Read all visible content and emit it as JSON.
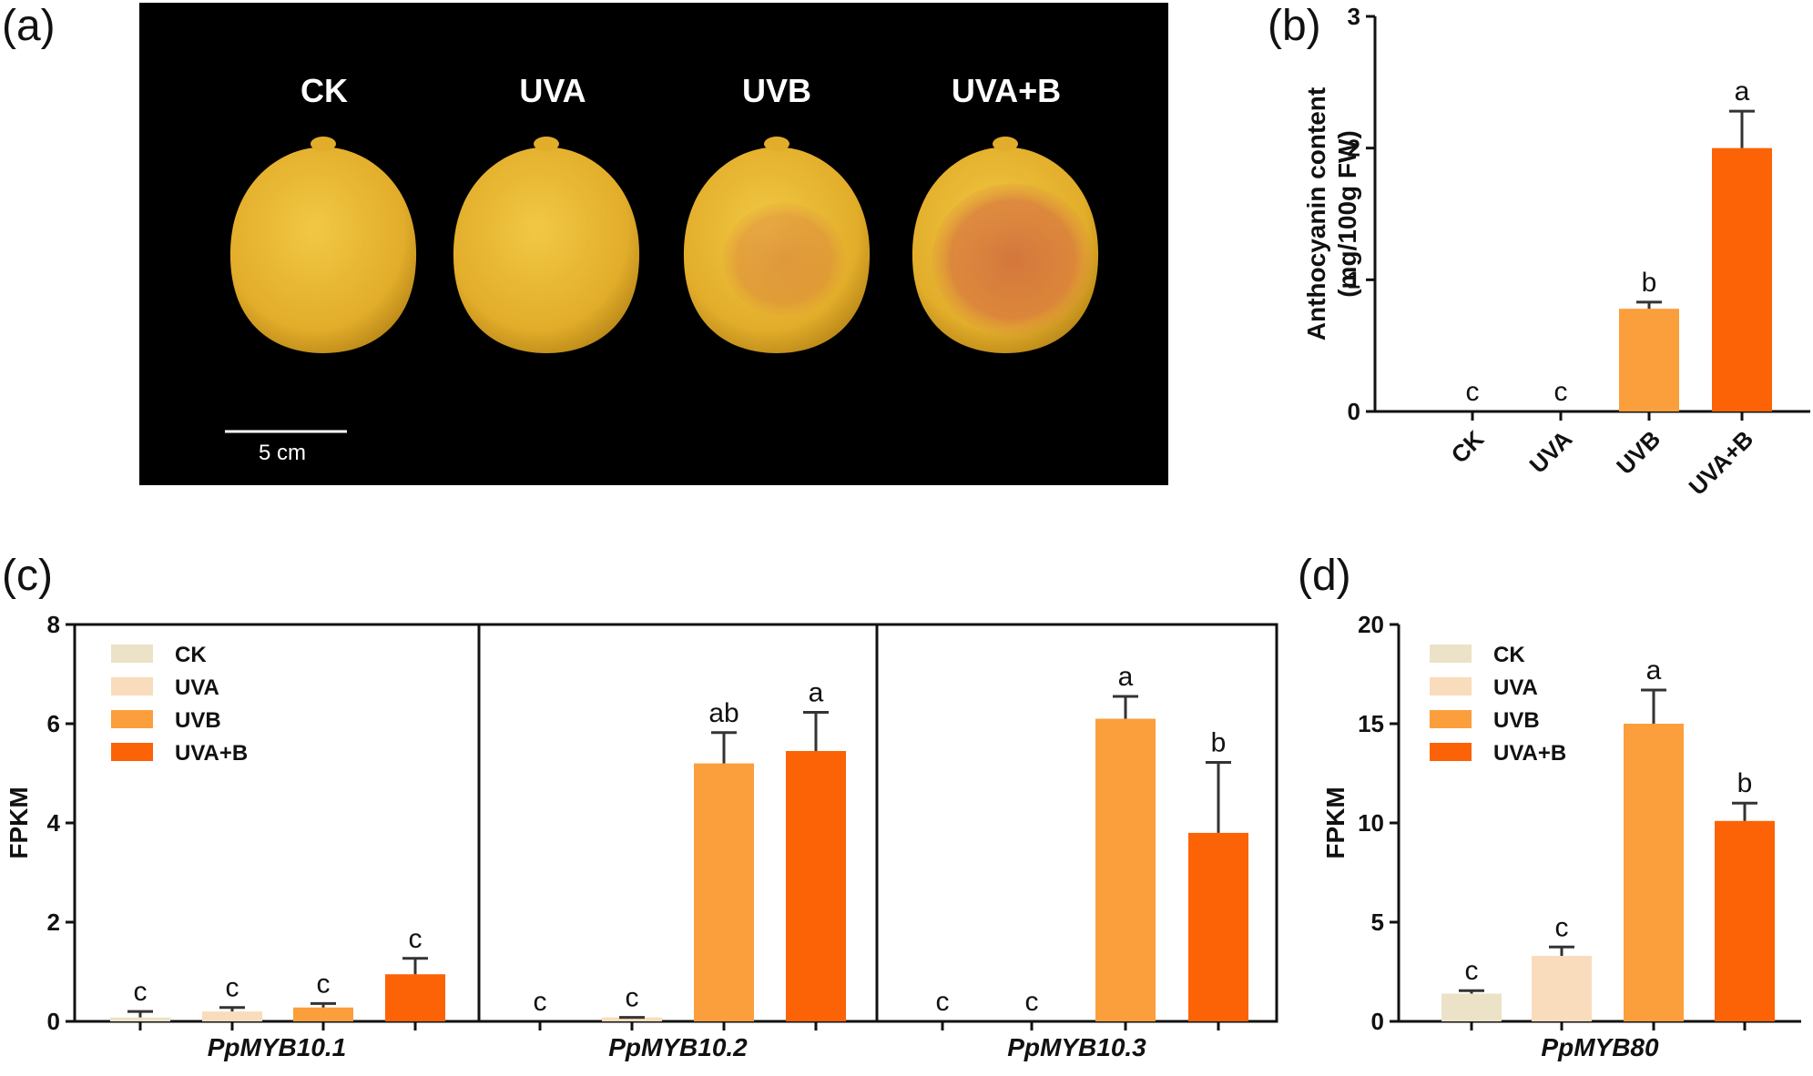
{
  "panel_labels": {
    "a": "(a)",
    "b": "(b)",
    "c": "(c)",
    "d": "(d)"
  },
  "photo": {
    "treatments": [
      "CK",
      "UVA",
      "UVB",
      "UVA+B"
    ],
    "scale_bar_label": "5 cm",
    "colors": {
      "background": "#000000",
      "fruit": "#e7b52f",
      "blush": "#d8763f"
    },
    "blush_levels": [
      0,
      0.05,
      0.45,
      0.85
    ]
  },
  "colors": {
    "CK": "#ebe2c7",
    "UVA": "#f9dcbc",
    "UVB": "#fb9e3c",
    "UVA+B": "#fb6306",
    "error": "#333333"
  },
  "chart_data": [
    {
      "id": "b",
      "type": "bar",
      "categories": [
        "CK",
        "UVA",
        "UVB",
        "UVA+B"
      ],
      "values": [
        0,
        0,
        0.78,
        2.0
      ],
      "errors": [
        0,
        0,
        0.05,
        0.28
      ],
      "significance": [
        "c",
        "c",
        "b",
        "a"
      ],
      "ylabel_lines": [
        "Anthocyanin content",
        "(mg/100g FW)"
      ],
      "ylim": [
        0,
        3
      ],
      "yticks": [
        0,
        1,
        2,
        3
      ],
      "xlabel": "",
      "title": ""
    },
    {
      "id": "c",
      "type": "bar",
      "ylabel": "FPKM",
      "ylim": [
        0,
        8
      ],
      "yticks": [
        0,
        2,
        4,
        6,
        8
      ],
      "legend": {
        "position": "top-left",
        "entries": [
          "CK",
          "UVA",
          "UVB",
          "UVA+B"
        ]
      },
      "groups": [
        {
          "gene": "PpMYB10.1",
          "values": [
            0.08,
            0.2,
            0.28,
            0.95
          ],
          "errors": [
            0.12,
            0.08,
            0.08,
            0.32
          ],
          "significance": [
            "c",
            "c",
            "c",
            "c"
          ]
        },
        {
          "gene": "PpMYB10.2",
          "values": [
            0,
            0.08,
            5.2,
            5.45
          ],
          "errors": [
            0,
            0,
            0.62,
            0.78
          ],
          "significance": [
            "c",
            "c",
            "ab",
            "a"
          ]
        },
        {
          "gene": "PpMYB10.3",
          "values": [
            0,
            0,
            6.1,
            3.8
          ],
          "errors": [
            0,
            0,
            0.45,
            1.42
          ],
          "significance": [
            "c",
            "c",
            "a",
            "b"
          ]
        }
      ],
      "series": [
        "CK",
        "UVA",
        "UVB",
        "UVA+B"
      ]
    },
    {
      "id": "d",
      "type": "bar",
      "ylabel": "FPKM",
      "ylim": [
        0,
        20
      ],
      "yticks": [
        0,
        5,
        10,
        15,
        20
      ],
      "legend": {
        "position": "top-left",
        "entries": [
          "CK",
          "UVA",
          "UVB",
          "UVA+B"
        ]
      },
      "groups": [
        {
          "gene": "PpMYB80",
          "values": [
            1.4,
            3.3,
            15.0,
            10.1
          ],
          "errors": [
            0.15,
            0.45,
            1.7,
            0.9
          ],
          "significance": [
            "c",
            "c",
            "a",
            "b"
          ]
        }
      ],
      "series": [
        "CK",
        "UVA",
        "UVB",
        "UVA+B"
      ]
    }
  ]
}
